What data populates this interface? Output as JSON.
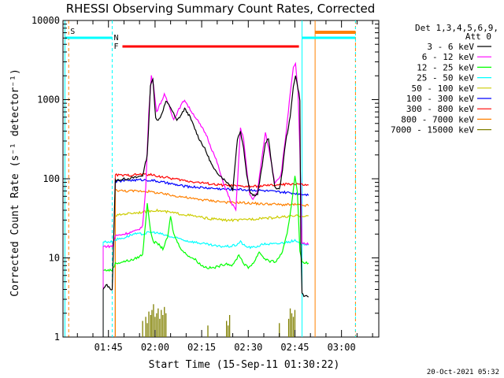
{
  "chart_data": {
    "type": "line",
    "title": "RHESSI Observing Summary Count Rates, Corrected",
    "xlabel": "Start Time (15-Sep-11 01:30:22)",
    "ylabel": "Corrected Count Rate (s⁻¹ detector⁻¹)",
    "y_scale": "log",
    "ylim": [
      1,
      10000
    ],
    "xlim": [
      "01:30:22",
      "03:12:00"
    ],
    "y_ticks": [
      {
        "v": 1,
        "label": "1"
      },
      {
        "v": 10,
        "label": "10"
      },
      {
        "v": 100,
        "label": "100"
      },
      {
        "v": 1000,
        "label": "1000"
      },
      {
        "v": 10000,
        "label": "10000"
      }
    ],
    "x_ticks": [
      {
        "m": 105,
        "label": "01:45"
      },
      {
        "m": 120,
        "label": "02:00"
      },
      {
        "m": 135,
        "label": "02:15"
      },
      {
        "m": 150,
        "label": "02:30"
      },
      {
        "m": 165,
        "label": "02:45"
      },
      {
        "m": 180,
        "label": "03:00"
      }
    ],
    "legend": {
      "header": [
        "Det 1,3,4,5,6,9,",
        "Att 0"
      ],
      "placement": "right"
    },
    "series": [
      {
        "name": "3 - 6 keV",
        "color": "#000000",
        "points": [
          [
            103.3,
            4
          ],
          [
            104.5,
            4.6
          ],
          [
            105.2,
            4.2
          ],
          [
            106.2,
            4
          ],
          [
            107.2,
            95
          ],
          [
            110,
            99
          ],
          [
            114,
            104
          ],
          [
            116,
            110
          ],
          [
            117.5,
            200
          ],
          [
            118.5,
            1500
          ],
          [
            119.3,
            1800
          ],
          [
            120.2,
            600
          ],
          [
            121,
            540
          ],
          [
            122,
            640
          ],
          [
            123.5,
            950
          ],
          [
            125,
            800
          ],
          [
            127,
            540
          ],
          [
            128.5,
            650
          ],
          [
            129.5,
            770
          ],
          [
            131,
            630
          ],
          [
            132.5,
            460
          ],
          [
            134,
            330
          ],
          [
            136,
            240
          ],
          [
            137.5,
            175
          ],
          [
            139,
            130
          ],
          [
            141,
            110
          ],
          [
            142.5,
            95
          ],
          [
            144,
            85
          ],
          [
            145,
            72
          ],
          [
            146.5,
            320
          ],
          [
            147.5,
            400
          ],
          [
            148.5,
            240
          ],
          [
            149.5,
            115
          ],
          [
            150.5,
            70
          ],
          [
            151.5,
            62
          ],
          [
            153,
            64
          ],
          [
            154.5,
            150
          ],
          [
            155.5,
            280
          ],
          [
            156.5,
            330
          ],
          [
            157.5,
            150
          ],
          [
            158.5,
            80
          ],
          [
            160,
            72
          ],
          [
            161,
            130
          ],
          [
            162,
            290
          ],
          [
            163.5,
            600
          ],
          [
            164.5,
            1500
          ],
          [
            165.2,
            2000
          ],
          [
            166,
            1400
          ],
          [
            166.6,
            1000
          ],
          [
            166.9,
            15
          ],
          [
            167.3,
            3.6
          ],
          [
            168.2,
            3.2
          ],
          [
            169.4,
            3.3
          ]
        ]
      },
      {
        "name": "6 - 12 keV",
        "color": "#ff00ff",
        "points": [
          [
            103.3,
            14
          ],
          [
            106.2,
            14
          ],
          [
            107.2,
            19
          ],
          [
            110,
            20
          ],
          [
            114,
            22
          ],
          [
            116,
            25
          ],
          [
            117,
            80
          ],
          [
            118,
            700
          ],
          [
            118.8,
            2000
          ],
          [
            119.5,
            1500
          ],
          [
            120.5,
            700
          ],
          [
            121.5,
            860
          ],
          [
            123,
            1150
          ],
          [
            124.5,
            850
          ],
          [
            126,
            560
          ],
          [
            128,
            800
          ],
          [
            129.5,
            1000
          ],
          [
            131,
            780
          ],
          [
            133,
            600
          ],
          [
            134.5,
            480
          ],
          [
            136.5,
            360
          ],
          [
            138,
            250
          ],
          [
            140,
            160
          ],
          [
            141.5,
            100
          ],
          [
            143,
            70
          ],
          [
            144.5,
            50
          ],
          [
            146,
            40
          ],
          [
            147.5,
            430
          ],
          [
            148.5,
            320
          ],
          [
            149.5,
            130
          ],
          [
            150.5,
            62
          ],
          [
            151.5,
            55
          ],
          [
            153,
            70
          ],
          [
            154.5,
            200
          ],
          [
            155.5,
            380
          ],
          [
            157,
            200
          ],
          [
            158.5,
            90
          ],
          [
            160.5,
            110
          ],
          [
            162,
            330
          ],
          [
            163.5,
            1200
          ],
          [
            164.5,
            2500
          ],
          [
            165.2,
            2800
          ],
          [
            166,
            1300
          ],
          [
            166.6,
            230
          ],
          [
            167.3,
            15
          ],
          [
            169.4,
            15
          ]
        ]
      },
      {
        "name": "12 - 25 keV",
        "color": "#00ff00",
        "points": [
          [
            103.3,
            7
          ],
          [
            106.2,
            7
          ],
          [
            107.2,
            8.5
          ],
          [
            110,
            9
          ],
          [
            113,
            9.5
          ],
          [
            116,
            11
          ],
          [
            117.5,
            50
          ],
          [
            118.5,
            22
          ],
          [
            119.5,
            16
          ],
          [
            121,
            15
          ],
          [
            122.5,
            13
          ],
          [
            124,
            18
          ],
          [
            125,
            33
          ],
          [
            126,
            20
          ],
          [
            127.5,
            15
          ],
          [
            129,
            12
          ],
          [
            131,
            10.5
          ],
          [
            133,
            9.5
          ],
          [
            135,
            8
          ],
          [
            137,
            7.5
          ],
          [
            139,
            7.5
          ],
          [
            141,
            8
          ],
          [
            143,
            8.5
          ],
          [
            145,
            8
          ],
          [
            147,
            11
          ],
          [
            148.5,
            8.5
          ],
          [
            150,
            7.5
          ],
          [
            152,
            9
          ],
          [
            153.5,
            12
          ],
          [
            155,
            10
          ],
          [
            157,
            9
          ],
          [
            159,
            9
          ],
          [
            161,
            12
          ],
          [
            162.5,
            20
          ],
          [
            164,
            50
          ],
          [
            165,
            110
          ],
          [
            165.8,
            70
          ],
          [
            166.6,
            12
          ],
          [
            167.3,
            9
          ],
          [
            169.4,
            8.5
          ]
        ]
      },
      {
        "name": "25 - 50 keV",
        "color": "#00ffff",
        "points": [
          [
            103.3,
            16
          ],
          [
            106.2,
            16
          ],
          [
            107.2,
            17
          ],
          [
            110,
            18
          ],
          [
            113,
            20
          ],
          [
            116,
            20
          ],
          [
            118,
            21
          ],
          [
            120,
            21
          ],
          [
            122,
            20
          ],
          [
            124,
            19
          ],
          [
            126,
            18
          ],
          [
            128,
            17.5
          ],
          [
            130,
            16.5
          ],
          [
            132,
            16
          ],
          [
            134,
            15.5
          ],
          [
            136,
            15
          ],
          [
            138,
            14.5
          ],
          [
            140,
            14
          ],
          [
            142,
            14
          ],
          [
            144,
            14
          ],
          [
            146,
            14.5
          ],
          [
            147.5,
            16
          ],
          [
            149,
            14
          ],
          [
            151,
            13.5
          ],
          [
            153,
            14
          ],
          [
            155,
            15
          ],
          [
            157,
            15
          ],
          [
            159,
            15
          ],
          [
            161,
            15.5
          ],
          [
            163,
            16
          ],
          [
            165,
            16.5
          ],
          [
            166.6,
            15
          ],
          [
            167.3,
            15
          ],
          [
            169.4,
            15
          ]
        ]
      },
      {
        "name": "50 - 100 keV",
        "color": "#cccc00",
        "points": [
          [
            107.2,
            34
          ],
          [
            110,
            36
          ],
          [
            113,
            37
          ],
          [
            116,
            38
          ],
          [
            118,
            39
          ],
          [
            120,
            40
          ],
          [
            122,
            39
          ],
          [
            124,
            38
          ],
          [
            126,
            37
          ],
          [
            128,
            36
          ],
          [
            130,
            35
          ],
          [
            132,
            34
          ],
          [
            134,
            33
          ],
          [
            136,
            32
          ],
          [
            138,
            31
          ],
          [
            140,
            31
          ],
          [
            142,
            30
          ],
          [
            144,
            30
          ],
          [
            146,
            30
          ],
          [
            148,
            30
          ],
          [
            150,
            31
          ],
          [
            152,
            31
          ],
          [
            154,
            32
          ],
          [
            156,
            32
          ],
          [
            158,
            32
          ],
          [
            160,
            33
          ],
          [
            162,
            33
          ],
          [
            164,
            33.5
          ],
          [
            166,
            34
          ],
          [
            167.3,
            34
          ],
          [
            169.4,
            34
          ]
        ]
      },
      {
        "name": "100 - 300 keV",
        "color": "#0000ff",
        "points": [
          [
            107.2,
            92
          ],
          [
            110,
            95
          ],
          [
            113,
            96
          ],
          [
            116,
            97
          ],
          [
            118,
            96
          ],
          [
            120,
            94
          ],
          [
            122,
            91
          ],
          [
            124,
            88
          ],
          [
            126,
            85
          ],
          [
            128,
            82
          ],
          [
            130,
            80
          ],
          [
            132,
            79
          ],
          [
            134,
            78
          ],
          [
            136,
            77
          ],
          [
            138,
            76
          ],
          [
            140,
            75
          ],
          [
            142,
            74
          ],
          [
            144,
            74
          ],
          [
            146,
            74
          ],
          [
            148,
            73
          ],
          [
            150,
            72
          ],
          [
            152,
            72
          ],
          [
            154,
            71
          ],
          [
            156,
            70
          ],
          [
            158,
            69
          ],
          [
            160,
            68
          ],
          [
            162,
            67
          ],
          [
            164,
            66
          ],
          [
            166,
            65
          ],
          [
            167.3,
            64
          ],
          [
            169.4,
            63
          ]
        ]
      },
      {
        "name": "300 - 800 keV",
        "color": "#ff0000",
        "points": [
          [
            107.2,
            112
          ],
          [
            110,
            110
          ],
          [
            113,
            112
          ],
          [
            116,
            114
          ],
          [
            118,
            113
          ],
          [
            120,
            110
          ],
          [
            122,
            106
          ],
          [
            124,
            103
          ],
          [
            126,
            100
          ],
          [
            128,
            97
          ],
          [
            130,
            94
          ],
          [
            132,
            92
          ],
          [
            134,
            90
          ],
          [
            136,
            88
          ],
          [
            138,
            86
          ],
          [
            140,
            84
          ],
          [
            142,
            83
          ],
          [
            144,
            82
          ],
          [
            146,
            81
          ],
          [
            148,
            80
          ],
          [
            150,
            80
          ],
          [
            152,
            80
          ],
          [
            154,
            81
          ],
          [
            156,
            82
          ],
          [
            158,
            83
          ],
          [
            160,
            84
          ],
          [
            162,
            85
          ],
          [
            164,
            86
          ],
          [
            166,
            86
          ],
          [
            167.3,
            84
          ],
          [
            169.4,
            82
          ]
        ]
      },
      {
        "name": "800 - 7000 keV",
        "color": "#ff8000",
        "points": [
          [
            107.2,
            72
          ],
          [
            110,
            70
          ],
          [
            113,
            70
          ],
          [
            116,
            70
          ],
          [
            118,
            69
          ],
          [
            120,
            67
          ],
          [
            122,
            65
          ],
          [
            124,
            63
          ],
          [
            126,
            61
          ],
          [
            128,
            60
          ],
          [
            130,
            58
          ],
          [
            132,
            56
          ],
          [
            134,
            55
          ],
          [
            136,
            54
          ],
          [
            138,
            53
          ],
          [
            140,
            52
          ],
          [
            142,
            51
          ],
          [
            144,
            50
          ],
          [
            146,
            50
          ],
          [
            148,
            50
          ],
          [
            150,
            49
          ],
          [
            152,
            49
          ],
          [
            154,
            48
          ],
          [
            156,
            48
          ],
          [
            158,
            48
          ],
          [
            160,
            47
          ],
          [
            162,
            47
          ],
          [
            164,
            47
          ],
          [
            166,
            47
          ],
          [
            167.3,
            46
          ],
          [
            169.4,
            46
          ]
        ]
      },
      {
        "name": "7000 - 15000 keV",
        "color": "#808000",
        "points": []
      }
    ],
    "annotations": [
      {
        "label": "S",
        "color": "#ff8000"
      },
      {
        "label": "N",
        "color": "#00c8ff"
      },
      {
        "label": "F",
        "color": "#ff0000"
      }
    ]
  },
  "footer": {
    "date": "20-Oct-2021 05:32"
  }
}
